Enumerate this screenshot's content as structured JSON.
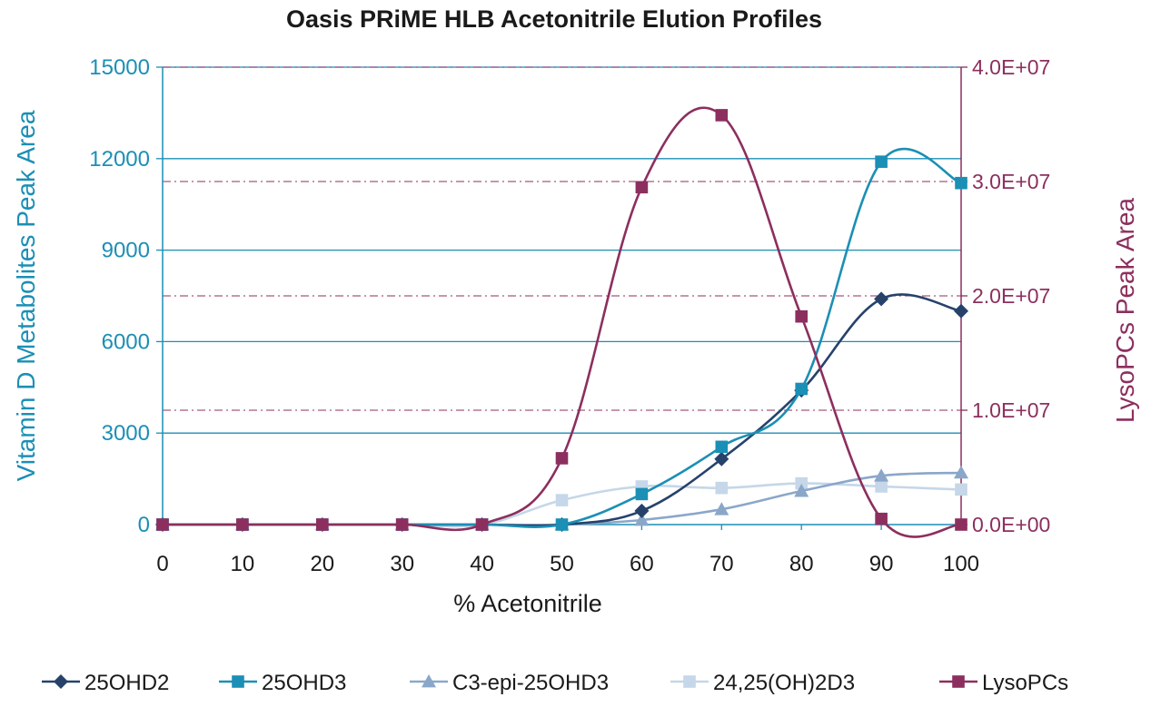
{
  "chart_data": {
    "type": "line",
    "title": "Oasis PRiME HLB Acetonitrile Elution Profiles",
    "xlabel": "% Acetonitrile",
    "ylabel_left": "Vitamin D Metabolites Peak Area",
    "ylabel_right": "LysoPCs Peak Area",
    "x": [
      0,
      10,
      20,
      30,
      40,
      50,
      60,
      70,
      80,
      90,
      100
    ],
    "x_tick_labels": [
      "0",
      "10",
      "20",
      "30",
      "40",
      "50",
      "60",
      "70",
      "80",
      "90",
      "100"
    ],
    "ylim_left": [
      0,
      15000
    ],
    "y_left_tick_labels": [
      "0",
      "3000",
      "6000",
      "9000",
      "12000",
      "15000"
    ],
    "y_left_tick_values": [
      0,
      3000,
      6000,
      9000,
      12000,
      15000
    ],
    "ylim_right": [
      0,
      40000000
    ],
    "y_right_tick_labels": [
      "0.0E+00",
      "1.0E+07",
      "2.0E+07",
      "3.0E+07",
      "4.0E+07"
    ],
    "y_right_tick_values": [
      0,
      10000000,
      20000000,
      30000000,
      40000000
    ],
    "legend_position": "bottom",
    "series": [
      {
        "name": "25OHD2",
        "axis": "left",
        "marker": "diamond",
        "color": "#26426b",
        "values": [
          0,
          0,
          0,
          0,
          0,
          0,
          450,
          2150,
          4400,
          7400,
          7000
        ]
      },
      {
        "name": "25OHD3",
        "axis": "left",
        "marker": "square",
        "color": "#1b8fb5",
        "values": [
          0,
          0,
          0,
          0,
          0,
          0,
          1000,
          2550,
          4450,
          11900,
          11200
        ]
      },
      {
        "name": "C3-epi-25OHD3",
        "axis": "left",
        "marker": "triangle",
        "color": "#8aa7c9",
        "values": [
          0,
          0,
          0,
          0,
          0,
          0,
          150,
          500,
          1100,
          1600,
          1700
        ]
      },
      {
        "name": "24,25(OH)2D3",
        "axis": "left",
        "marker": "square",
        "color": "#c5d7e8",
        "values": [
          0,
          0,
          0,
          0,
          0,
          800,
          1250,
          1200,
          1350,
          1250,
          1150
        ]
      },
      {
        "name": "LysoPCs",
        "axis": "right",
        "marker": "square",
        "color": "#8c2f5e",
        "values": [
          0,
          0,
          0,
          0,
          0,
          5800000,
          29500000,
          35800000,
          18200000,
          500000,
          0
        ]
      }
    ]
  }
}
